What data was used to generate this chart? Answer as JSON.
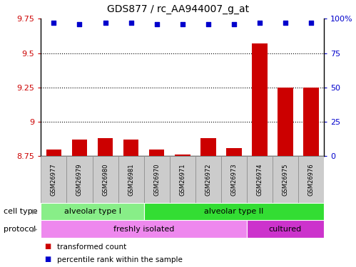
{
  "title": "GDS877 / rc_AA944007_g_at",
  "samples": [
    "GSM26977",
    "GSM26979",
    "GSM26980",
    "GSM26981",
    "GSM26970",
    "GSM26971",
    "GSM26972",
    "GSM26973",
    "GSM26974",
    "GSM26975",
    "GSM26976"
  ],
  "bar_values": [
    8.8,
    8.87,
    8.88,
    8.87,
    8.8,
    8.76,
    8.88,
    8.81,
    9.57,
    9.25,
    9.25
  ],
  "dot_values_right": [
    97,
    96,
    97,
    97,
    96,
    96,
    96,
    96,
    97,
    97,
    97
  ],
  "ylim_left": [
    8.75,
    9.75
  ],
  "ylim_right": [
    0,
    100
  ],
  "yticks_left": [
    8.75,
    9.0,
    9.25,
    9.5,
    9.75
  ],
  "yticks_right": [
    0,
    25,
    50,
    75,
    100
  ],
  "ytick_labels_left": [
    "8.75",
    "9",
    "9.25",
    "9.5",
    "9.75"
  ],
  "ytick_labels_right": [
    "0",
    "25",
    "50",
    "75",
    "100%"
  ],
  "hlines": [
    9.0,
    9.25,
    9.5
  ],
  "bar_color": "#cc0000",
  "dot_color": "#0000cc",
  "cell_type_groups": [
    {
      "label": "alveolar type I",
      "start": 0,
      "end": 3,
      "color": "#88ee88"
    },
    {
      "label": "alveolar type II",
      "start": 4,
      "end": 10,
      "color": "#33dd33"
    }
  ],
  "protocol_groups": [
    {
      "label": "freshly isolated",
      "start": 0,
      "end": 7,
      "color": "#ee88ee"
    },
    {
      "label": "cultured",
      "start": 8,
      "end": 10,
      "color": "#cc33cc"
    }
  ],
  "legend_items": [
    {
      "label": "transformed count",
      "color": "#cc0000"
    },
    {
      "label": "percentile rank within the sample",
      "color": "#0000cc"
    }
  ],
  "cell_type_label": "cell type",
  "protocol_label": "protocol",
  "bg_color": "#ffffff",
  "tick_color_left": "#cc0000",
  "tick_color_right": "#0000cc",
  "sample_box_color": "#cccccc",
  "sample_box_edge": "#888888",
  "bar_width": 0.6
}
